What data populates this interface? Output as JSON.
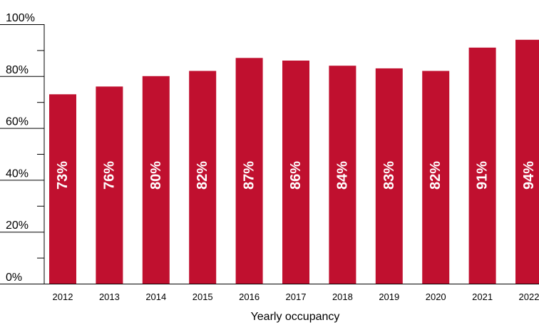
{
  "chart_data": {
    "type": "bar",
    "title": "",
    "xlabel": "Yearly occupancy",
    "ylabel": "",
    "categories": [
      "2012",
      "2013",
      "2014",
      "2015",
      "2016",
      "2017",
      "2018",
      "2019",
      "2020",
      "2021",
      "2022"
    ],
    "values": [
      73,
      76,
      80,
      82,
      87,
      86,
      84,
      83,
      82,
      91,
      94
    ],
    "data_labels": [
      "73%",
      "76%",
      "80%",
      "82%",
      "87%",
      "86%",
      "84%",
      "83%",
      "82%",
      "91%",
      "94%"
    ],
    "ylim": [
      0,
      100
    ],
    "yticks": [
      0,
      20,
      40,
      60,
      80,
      100
    ],
    "ytick_labels": [
      "0%",
      "20%",
      "40%",
      "60%",
      "80%",
      "100%"
    ],
    "y_minor_ticks": [
      10,
      30,
      50,
      70,
      90
    ],
    "grid": false,
    "bar_color": "#c0102f",
    "label_color": "#ffffff",
    "axis_color": "#000000"
  }
}
